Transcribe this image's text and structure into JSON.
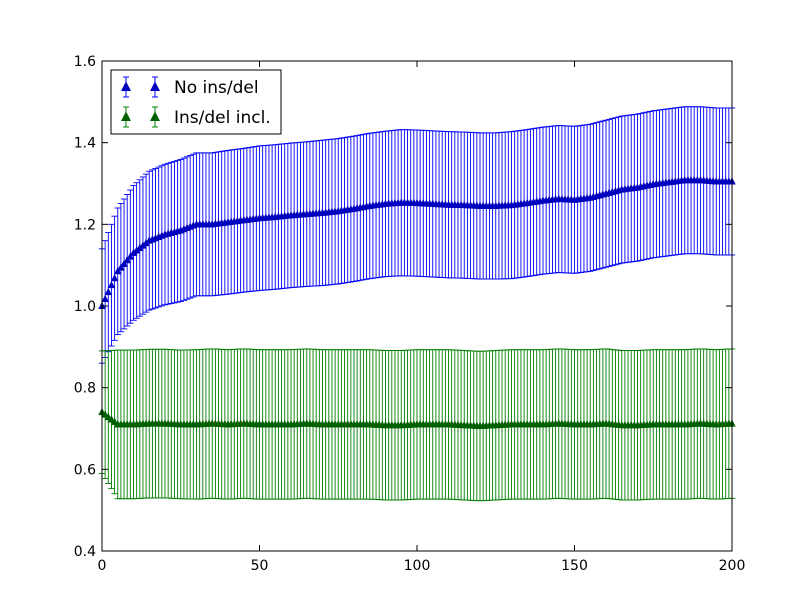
{
  "chart_data": {
    "type": "errorbar",
    "title": "",
    "xlabel": "",
    "ylabel": "",
    "xlim": [
      0,
      200
    ],
    "ylim": [
      0.4,
      1.6
    ],
    "x_ticks": [
      0,
      50,
      100,
      150,
      200
    ],
    "x_tick_labels": [
      "0",
      "50",
      "100",
      "150",
      "200"
    ],
    "y_ticks": [
      0.4,
      0.6,
      0.8,
      1.0,
      1.2,
      1.4,
      1.6
    ],
    "y_tick_labels": [
      "0.4",
      "0.6",
      "0.8",
      "1.0",
      "1.2",
      "1.4",
      "1.6"
    ],
    "grid": false,
    "legend_position": "top-left",
    "marker": "triangle-up",
    "series": [
      {
        "name": "No ins/del",
        "color": "#0000ff",
        "marker_color": "#0000bf",
        "x": [
          0,
          5,
          10,
          15,
          20,
          25,
          30,
          35,
          40,
          45,
          50,
          55,
          60,
          65,
          70,
          75,
          80,
          85,
          90,
          95,
          100,
          105,
          110,
          115,
          120,
          125,
          130,
          135,
          140,
          145,
          150,
          155,
          160,
          165,
          170,
          175,
          180,
          185,
          190,
          195,
          200
        ],
        "y": [
          1.0,
          1.085,
          1.13,
          1.16,
          1.175,
          1.185,
          1.2,
          1.2,
          1.205,
          1.21,
          1.215,
          1.218,
          1.222,
          1.225,
          1.228,
          1.232,
          1.238,
          1.245,
          1.25,
          1.253,
          1.252,
          1.25,
          1.248,
          1.247,
          1.245,
          1.245,
          1.247,
          1.252,
          1.258,
          1.262,
          1.26,
          1.265,
          1.275,
          1.285,
          1.29,
          1.298,
          1.303,
          1.308,
          1.308,
          1.305,
          1.305
        ],
        "err": [
          0.14,
          0.155,
          0.165,
          0.17,
          0.172,
          0.174,
          0.175,
          0.175,
          0.176,
          0.176,
          0.177,
          0.177,
          0.177,
          0.177,
          0.178,
          0.178,
          0.178,
          0.178,
          0.178,
          0.179,
          0.179,
          0.179,
          0.179,
          0.179,
          0.179,
          0.179,
          0.18,
          0.18,
          0.18,
          0.18,
          0.18,
          0.18,
          0.18,
          0.18,
          0.18,
          0.18,
          0.18,
          0.18,
          0.18,
          0.18,
          0.18
        ]
      },
      {
        "name": "Ins/del incl.",
        "color": "#008000",
        "marker_color": "#006000",
        "x": [
          0,
          5,
          10,
          15,
          20,
          25,
          30,
          35,
          40,
          45,
          50,
          55,
          60,
          65,
          70,
          75,
          80,
          85,
          90,
          95,
          100,
          105,
          110,
          115,
          120,
          125,
          130,
          135,
          140,
          145,
          150,
          155,
          160,
          165,
          170,
          175,
          180,
          185,
          190,
          195,
          200
        ],
        "y": [
          0.74,
          0.71,
          0.71,
          0.712,
          0.712,
          0.71,
          0.71,
          0.712,
          0.71,
          0.712,
          0.71,
          0.71,
          0.71,
          0.712,
          0.71,
          0.71,
          0.71,
          0.71,
          0.708,
          0.708,
          0.71,
          0.71,
          0.71,
          0.708,
          0.706,
          0.708,
          0.71,
          0.71,
          0.71,
          0.712,
          0.71,
          0.71,
          0.712,
          0.708,
          0.708,
          0.71,
          0.71,
          0.71,
          0.712,
          0.71,
          0.712
        ],
        "err": [
          0.15,
          0.182,
          0.182,
          0.182,
          0.182,
          0.182,
          0.183,
          0.183,
          0.183,
          0.183,
          0.183,
          0.183,
          0.183,
          0.183,
          0.183,
          0.183,
          0.183,
          0.183,
          0.183,
          0.183,
          0.183,
          0.183,
          0.183,
          0.183,
          0.183,
          0.183,
          0.183,
          0.183,
          0.183,
          0.183,
          0.183,
          0.183,
          0.183,
          0.183,
          0.183,
          0.183,
          0.183,
          0.183,
          0.183,
          0.183,
          0.183
        ]
      }
    ]
  }
}
